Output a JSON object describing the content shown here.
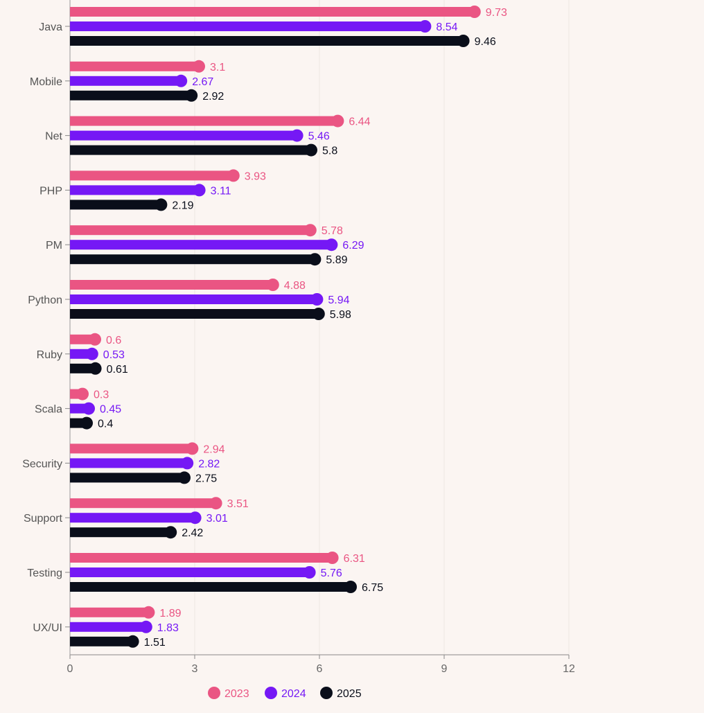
{
  "chart_data": {
    "type": "bar",
    "orientation": "horizontal",
    "title": "",
    "xlabel": "",
    "ylabel": "",
    "xlim": [
      0,
      12
    ],
    "xticks": [
      "0",
      "3",
      "6",
      "9",
      "12"
    ],
    "grid": true,
    "legend_position": "bottom",
    "categories": [
      "Java",
      "Mobile",
      "Net",
      "PHP",
      "PM",
      "Python",
      "Ruby",
      "Scala",
      "Security",
      "Support",
      "Testing",
      "UX/UI"
    ],
    "series": [
      {
        "name": "2023",
        "color": "#ea5583",
        "values": [
          9.73,
          3.1,
          6.44,
          3.93,
          5.78,
          4.88,
          0.6,
          0.3,
          2.94,
          3.51,
          6.31,
          1.89
        ]
      },
      {
        "name": "2024",
        "color": "#7518f5",
        "values": [
          8.54,
          2.67,
          5.46,
          3.11,
          6.29,
          5.94,
          0.53,
          0.45,
          2.82,
          3.01,
          5.76,
          1.83
        ]
      },
      {
        "name": "2025",
        "color": "#0a0e1a",
        "values": [
          9.46,
          2.92,
          5.8,
          2.19,
          5.89,
          5.98,
          0.61,
          0.4,
          2.75,
          2.42,
          6.75,
          1.51
        ]
      }
    ]
  }
}
